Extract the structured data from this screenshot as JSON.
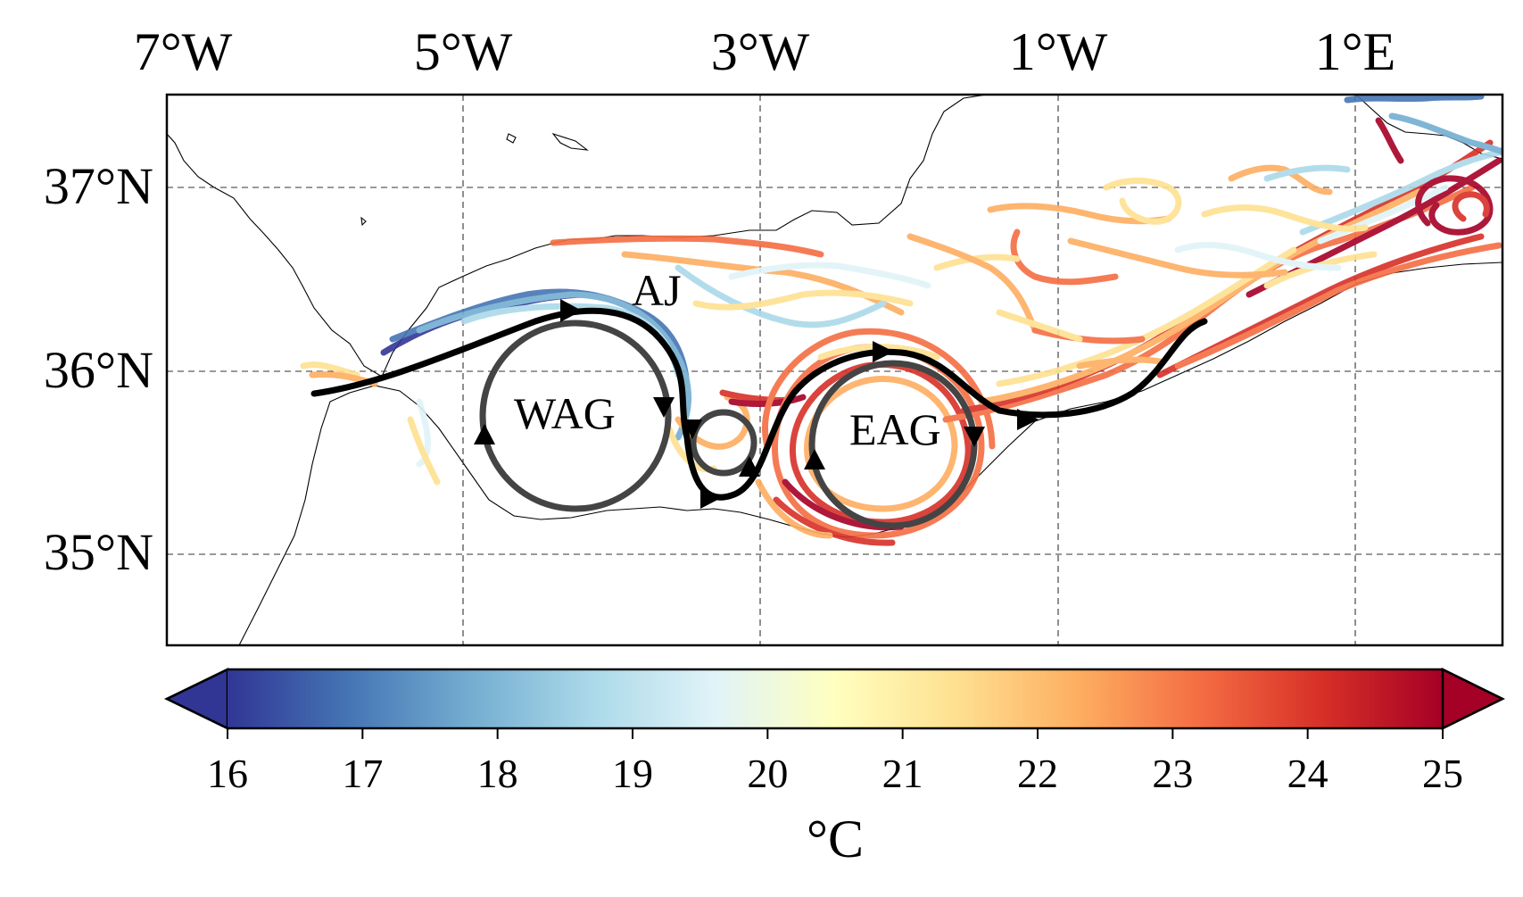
{
  "map": {
    "lon_labels": [
      "7°W",
      "5°W",
      "3°W",
      "1°W",
      "1°E"
    ],
    "lat_labels": [
      "37°N",
      "36°N",
      "35°N"
    ],
    "features": {
      "jet_label": "AJ",
      "west_gyre_label": "WAG",
      "east_gyre_label": "EAG"
    },
    "gridlines": "dashed"
  },
  "colorbar": {
    "min": 16,
    "max": 25,
    "tick_labels": [
      "16",
      "17",
      "18",
      "19",
      "20",
      "21",
      "22",
      "23",
      "24",
      "25"
    ],
    "unit": "°C",
    "extend": "both",
    "colormap": "RdYlBu_r",
    "color_stops": [
      "#313695",
      "#4575b4",
      "#74add1",
      "#abd9e9",
      "#e0f3f8",
      "#ffffbf",
      "#fee090",
      "#fdae61",
      "#f46d43",
      "#d73027",
      "#a50026"
    ]
  }
}
